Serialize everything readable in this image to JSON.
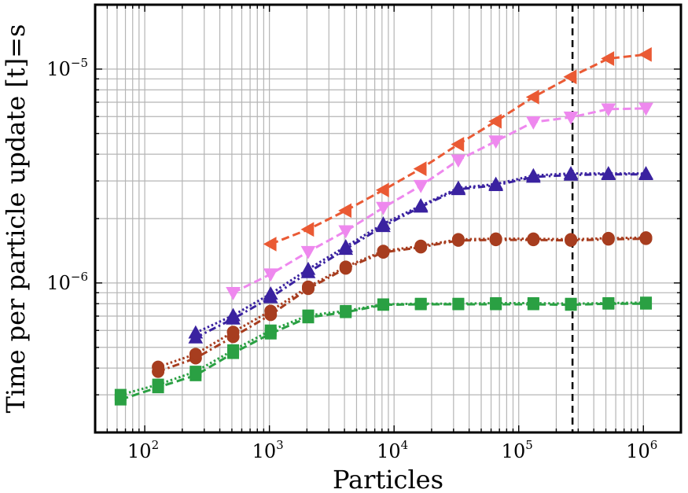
{
  "chart_data": {
    "type": "line",
    "title": "",
    "xlabel": "Particles",
    "ylabel": "Time per particle update [t]=s",
    "xscale": "log",
    "yscale": "log",
    "xlim": [
      40,
      2000000
    ],
    "ylim": [
      2e-07,
      2e-05
    ],
    "grid": true,
    "legend": "none",
    "x_ticks": [
      {
        "base": "10",
        "exp": "2",
        "value": 100
      },
      {
        "base": "10",
        "exp": "3",
        "value": 1000
      },
      {
        "base": "10",
        "exp": "4",
        "value": 10000
      },
      {
        "base": "10",
        "exp": "5",
        "value": 100000
      },
      {
        "base": "10",
        "exp": "6",
        "value": 1000000
      }
    ],
    "y_ticks": [
      {
        "base": "10",
        "exp": "−6",
        "value": 1e-06
      },
      {
        "base": "10",
        "exp": "−5",
        "value": 1e-05
      }
    ],
    "vline": {
      "x": 270000,
      "style": "dashed",
      "color": "#000000"
    },
    "series": [
      {
        "marker": "square",
        "color": "#2aa043",
        "line_style": "dashed",
        "x": [
          64,
          128,
          256,
          512,
          1024,
          2048,
          4096,
          8192,
          16384,
          32768,
          65536,
          131072,
          262144,
          524288,
          1048576
        ],
        "y": [
          2.85e-07,
          3.25e-07,
          3.7e-07,
          4.7e-07,
          5.8e-07,
          6.9e-07,
          7.3e-07,
          7.9e-07,
          7.95e-07,
          7.95e-07,
          7.95e-07,
          7.95e-07,
          7.9e-07,
          8e-07,
          8e-07
        ]
      },
      {
        "marker": "square",
        "color": "#2aa043",
        "line_style": "dotted",
        "x": [
          64,
          128,
          256,
          512,
          1024,
          2048,
          4096,
          8192,
          16384,
          32768,
          65536,
          131072,
          262144,
          524288,
          1048576
        ],
        "y": [
          3e-07,
          3.35e-07,
          3.85e-07,
          4.85e-07,
          6e-07,
          7.05e-07,
          7.4e-07,
          7.95e-07,
          8e-07,
          8e-07,
          8.05e-07,
          8.05e-07,
          8e-07,
          8.05e-07,
          8.1e-07
        ]
      },
      {
        "marker": "circle",
        "color": "#a73d1f",
        "line_style": "dashdot",
        "x": [
          128,
          256,
          512,
          1024,
          2048,
          4096,
          8192,
          16384,
          32768,
          65536,
          131072,
          262144,
          524288,
          1048576
        ],
        "y": [
          3.85e-07,
          4.45e-07,
          5.6e-07,
          7.1e-07,
          9.4e-07,
          1.17e-06,
          1.39e-06,
          1.47e-06,
          1.58e-06,
          1.59e-06,
          1.59e-06,
          1.58e-06,
          1.6e-06,
          1.61e-06
        ]
      },
      {
        "marker": "circle",
        "color": "#a73d1f",
        "line_style": "dotted",
        "x": [
          128,
          256,
          512,
          1024,
          2048,
          4096,
          8192,
          16384,
          32768,
          65536,
          131072,
          262144,
          524288,
          1048576
        ],
        "y": [
          4.05e-07,
          4.65e-07,
          5.9e-07,
          7.4e-07,
          9.6e-07,
          1.19e-06,
          1.41e-06,
          1.49e-06,
          1.6e-06,
          1.61e-06,
          1.61e-06,
          1.6e-06,
          1.62e-06,
          1.63e-06
        ]
      },
      {
        "marker": "triangle-up",
        "color": "#3a22a0",
        "line_style": "dashdot",
        "x": [
          256,
          512,
          1024,
          2048,
          4096,
          8192,
          16384,
          32768,
          65536,
          131072,
          262144,
          524288,
          1048576
        ],
        "y": [
          5.55e-07,
          6.8e-07,
          8.55e-07,
          1.12e-06,
          1.44e-06,
          1.84e-06,
          2.27e-06,
          2.74e-06,
          2.86e-06,
          3.13e-06,
          3.2e-06,
          3.22e-06,
          3.22e-06
        ]
      },
      {
        "marker": "triangle-up",
        "color": "#3a22a0",
        "line_style": "dotted",
        "x": [
          256,
          512,
          1024,
          2048,
          4096,
          8192,
          16384,
          32768,
          65536,
          131072,
          262144,
          524288,
          1048576
        ],
        "y": [
          5.85e-07,
          7.05e-07,
          8.9e-07,
          1.16e-06,
          1.48e-06,
          1.89e-06,
          2.3e-06,
          2.78e-06,
          2.9e-06,
          3.18e-06,
          3.25e-06,
          3.25e-06,
          3.25e-06
        ]
      },
      {
        "marker": "triangle-down",
        "color": "#ee88ee",
        "line_style": "dashed",
        "x": [
          512,
          1024,
          2048,
          4096,
          8192,
          16384,
          32768,
          65536,
          131072,
          262144,
          524288,
          1048576
        ],
        "y": [
          9e-07,
          1.1e-06,
          1.4e-06,
          1.75e-06,
          2.25e-06,
          2.85e-06,
          3.75e-06,
          4.6e-06,
          5.65e-06,
          5.95e-06,
          6.5e-06,
          6.55e-06
        ]
      },
      {
        "marker": "triangle-left",
        "color": "#ea5a34",
        "line_style": "dashed",
        "x": [
          1024,
          2048,
          4096,
          8192,
          16384,
          32768,
          65536,
          131072,
          262144,
          524288,
          1048576
        ],
        "y": [
          1.52e-06,
          1.78e-06,
          2.18e-06,
          2.72e-06,
          3.42e-06,
          4.45e-06,
          5.7e-06,
          7.4e-06,
          9.2e-06,
          1.12e-05,
          1.17e-05
        ]
      }
    ]
  }
}
